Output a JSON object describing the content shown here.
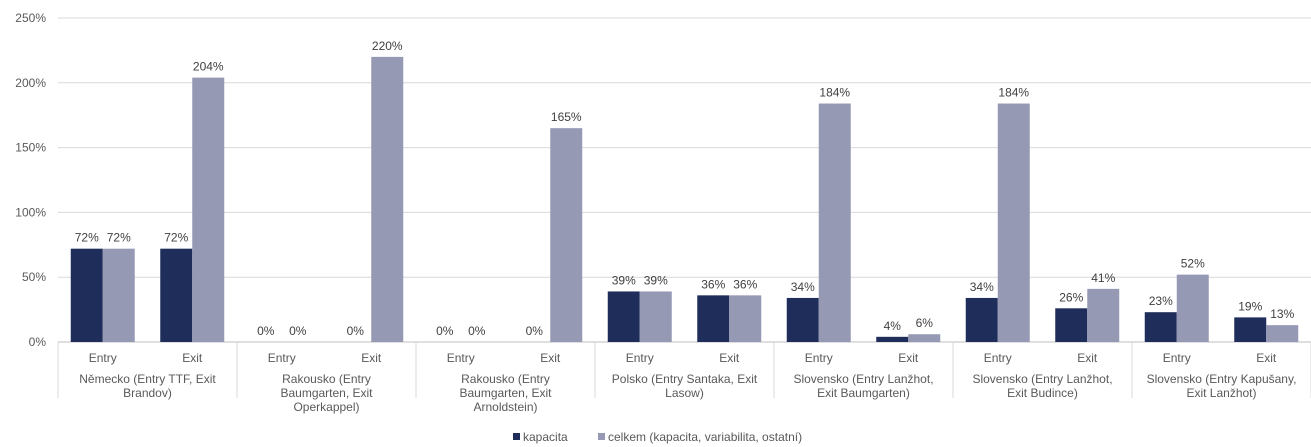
{
  "chart_data": {
    "type": "bar",
    "ylim": [
      0,
      250
    ],
    "yticks": [
      "0%",
      "50%",
      "100%",
      "150%",
      "200%",
      "250%"
    ],
    "grid": true,
    "legend_position": "bottom",
    "groups": [
      {
        "label": [
          "Německo (Entry TTF, Exit",
          "Brandov)"
        ],
        "categories": [
          "Entry",
          "Exit"
        ]
      },
      {
        "label": [
          "Rakousko (Entry",
          "Baumgarten, Exit",
          "Operkappel)"
        ],
        "categories": [
          "Entry",
          "Exit"
        ]
      },
      {
        "label": [
          "Rakousko (Entry",
          "Baumgarten, Exit",
          "Arnoldstein)"
        ],
        "categories": [
          "Entry",
          "Exit"
        ]
      },
      {
        "label": [
          "Polsko (Entry Santaka, Exit",
          "Lasow)"
        ],
        "categories": [
          "Entry",
          "Exit"
        ]
      },
      {
        "label": [
          "Slovensko (Entry Lanžhot,",
          "Exit Baumgarten)"
        ],
        "categories": [
          "Entry",
          "Exit"
        ]
      },
      {
        "label": [
          "Slovensko (Entry Lanžhot,",
          "Exit Budince)"
        ],
        "categories": [
          "Entry",
          "Exit"
        ]
      },
      {
        "label": [
          "Slovensko (Entry Kapušany,",
          "Exit Lanžhot)"
        ],
        "categories": [
          "Entry",
          "Exit"
        ]
      }
    ],
    "series": [
      {
        "name": "kapacita",
        "color": "#1f2d5a",
        "values": [
          72,
          72,
          0,
          0,
          0,
          0,
          39,
          36,
          34,
          4,
          34,
          26,
          23,
          19
        ],
        "labels": [
          "72%",
          "72%",
          "0%",
          "0%",
          "0%",
          "0%",
          "39%",
          "36%",
          "34%",
          "4%",
          "34%",
          "26%",
          "23%",
          "19%"
        ]
      },
      {
        "name": "celkem (kapacita, variabilita, ostatní)",
        "color": "#9599b3",
        "values": [
          72,
          204,
          0,
          220,
          0,
          165,
          39,
          36,
          184,
          6,
          184,
          41,
          52,
          13
        ],
        "labels": [
          "72%",
          "204%",
          "0%",
          "220%",
          "0%",
          "165%",
          "39%",
          "36%",
          "184%",
          "6%",
          "184%",
          "41%",
          "52%",
          "13%"
        ]
      }
    ]
  }
}
